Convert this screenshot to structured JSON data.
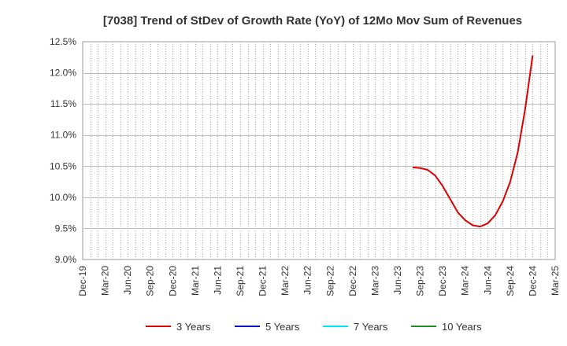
{
  "chart_data": {
    "type": "line",
    "title": "[7038]  Trend of StDev of Growth Rate (YoY) of 12Mo Mov Sum of Revenues",
    "xlabel": "",
    "ylabel": "",
    "ylim": [
      9.0,
      12.5
    ],
    "y_ticks": [
      9.0,
      9.5,
      10.0,
      10.5,
      11.0,
      11.5,
      12.0,
      12.5
    ],
    "y_tick_labels": [
      "9.0%",
      "9.5%",
      "10.0%",
      "10.5%",
      "11.0%",
      "11.5%",
      "12.0%",
      "12.5%"
    ],
    "x_tick_labels": [
      "Dec-19",
      "Mar-20",
      "Jun-20",
      "Sep-20",
      "Dec-20",
      "Mar-21",
      "Jun-21",
      "Sep-21",
      "Dec-21",
      "Mar-22",
      "Jun-22",
      "Sep-22",
      "Dec-22",
      "Mar-23",
      "Jun-23",
      "Sep-23",
      "Dec-23",
      "Mar-24",
      "Jun-24",
      "Sep-24",
      "Dec-24",
      "Mar-25"
    ],
    "x_range_months": [
      0,
      63
    ],
    "grid": true,
    "legend_position": "bottom",
    "series": [
      {
        "name": "3 Years",
        "color": "#dd0000",
        "points": [
          {
            "month": 44,
            "value": 10.48
          },
          {
            "month": 45,
            "value": 10.47
          },
          {
            "month": 46,
            "value": 10.44
          },
          {
            "month": 47,
            "value": 10.35
          },
          {
            "month": 48,
            "value": 10.18
          },
          {
            "month": 49,
            "value": 9.97
          },
          {
            "month": 50,
            "value": 9.76
          },
          {
            "month": 51,
            "value": 9.63
          },
          {
            "month": 52,
            "value": 9.55
          },
          {
            "month": 53,
            "value": 9.53
          },
          {
            "month": 54,
            "value": 9.58
          },
          {
            "month": 55,
            "value": 9.71
          },
          {
            "month": 56,
            "value": 9.93
          },
          {
            "month": 57,
            "value": 10.25
          },
          {
            "month": 58,
            "value": 10.72
          },
          {
            "month": 59,
            "value": 11.42
          },
          {
            "month": 60,
            "value": 12.28
          }
        ]
      },
      {
        "name": "5 Years",
        "color": "#0000cc",
        "points": []
      },
      {
        "name": "7 Years",
        "color": "#00e5ee",
        "points": []
      },
      {
        "name": "10 Years",
        "color": "#228b22",
        "points": []
      }
    ]
  }
}
